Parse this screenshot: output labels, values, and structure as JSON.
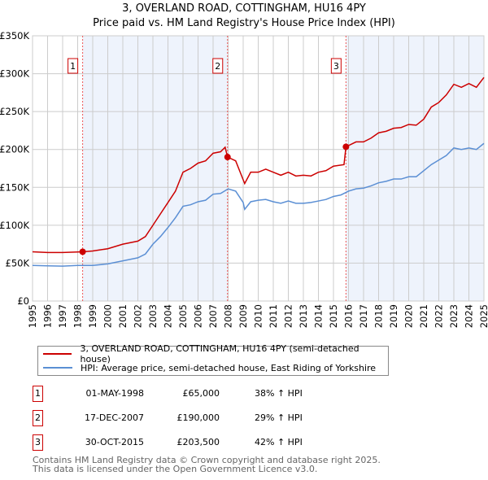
{
  "title": "3, OVERLAND ROAD, COTTINGHAM, HU16 4PY",
  "subtitle": "Price paid vs. HM Land Registry's House Price Index (HPI)",
  "colors": {
    "property": "#cc0000",
    "hpi": "#5b8fd4",
    "shade": "#eef3fc"
  },
  "chart_data": {
    "type": "line",
    "xlim": [
      1995,
      2025
    ],
    "ylim": [
      0,
      350000
    ],
    "yticks": [
      0,
      50000,
      100000,
      150000,
      200000,
      250000,
      300000,
      350000
    ],
    "ytick_labels": [
      "£0",
      "£50K",
      "£100K",
      "£150K",
      "£200K",
      "£250K",
      "£300K",
      "£350K"
    ],
    "xticks": [
      "1995",
      "1996",
      "1997",
      "1998",
      "1999",
      "2000",
      "2001",
      "2002",
      "2003",
      "2004",
      "2005",
      "2006",
      "2007",
      "2008",
      "2009",
      "2010",
      "2011",
      "2012",
      "2013",
      "2014",
      "2015",
      "2016",
      "2017",
      "2018",
      "2019",
      "2020",
      "2021",
      "2022",
      "2023",
      "2024",
      "2025"
    ],
    "grid": true,
    "series": [
      {
        "name": "3, OVERLAND ROAD, COTTINGHAM, HU16 4PY (semi-detached house)",
        "x": [
          1995,
          1996,
          1997,
          1998.33,
          1999,
          2000,
          2001,
          2002,
          2002.5,
          2003,
          2003.5,
          2004,
          2004.5,
          2005,
          2005.5,
          2006,
          2006.5,
          2007,
          2007.5,
          2007.8,
          2007.96,
          2008.5,
          2009,
          2009.1,
          2009.5,
          2010,
          2010.5,
          2011,
          2011.5,
          2012,
          2012.5,
          2013,
          2013.5,
          2014,
          2014.5,
          2015,
          2015.7,
          2015.83,
          2016.5,
          2017,
          2017.5,
          2018,
          2018.5,
          2019,
          2019.5,
          2020,
          2020.5,
          2021,
          2021.5,
          2022,
          2022.5,
          2023,
          2023.5,
          2024,
          2024.5,
          2025
        ],
        "y": [
          65000,
          64000,
          64000,
          65000,
          66000,
          69000,
          75000,
          79000,
          85000,
          100000,
          115000,
          130000,
          145000,
          170000,
          175000,
          182000,
          185000,
          195000,
          197000,
          203000,
          190000,
          185000,
          160000,
          155000,
          170000,
          170000,
          174000,
          170000,
          166000,
          170000,
          165000,
          166000,
          165000,
          170000,
          172000,
          178000,
          180000,
          203500,
          210000,
          210000,
          215000,
          222000,
          224000,
          228000,
          229000,
          233000,
          232000,
          240000,
          256000,
          262000,
          272000,
          286000,
          282000,
          287000,
          282000,
          295000
        ]
      },
      {
        "name": "HPI: Average price, semi-detached house, East Riding of Yorkshire",
        "x": [
          1995,
          1996,
          1997,
          1998,
          1999,
          2000,
          2001,
          2002,
          2002.5,
          2003,
          2003.5,
          2004,
          2004.5,
          2005,
          2005.5,
          2006,
          2006.5,
          2007,
          2007.5,
          2008,
          2008.5,
          2009,
          2009.1,
          2009.5,
          2010,
          2010.5,
          2011,
          2011.5,
          2012,
          2012.5,
          2013,
          2013.5,
          2014,
          2014.5,
          2015,
          2015.5,
          2016,
          2016.5,
          2017,
          2017.5,
          2018,
          2018.5,
          2019,
          2019.5,
          2020,
          2020.5,
          2021,
          2021.5,
          2022,
          2022.5,
          2023,
          2023.5,
          2024,
          2024.5,
          2025
        ],
        "y": [
          47000,
          46500,
          46000,
          47000,
          47000,
          49000,
          53000,
          57000,
          62000,
          75000,
          85000,
          97000,
          110000,
          125000,
          127000,
          131000,
          133000,
          141000,
          142000,
          148000,
          145000,
          130000,
          121000,
          131000,
          133000,
          134000,
          131000,
          129000,
          132000,
          129000,
          129000,
          130000,
          132000,
          134000,
          138000,
          140000,
          145000,
          148000,
          149000,
          152000,
          156000,
          158000,
          161000,
          161000,
          164000,
          164000,
          172000,
          180000,
          186000,
          192000,
          202000,
          200000,
          202000,
          200000,
          208000
        ]
      }
    ],
    "sales": [
      {
        "label": "1",
        "x": 1998.33,
        "y": 65000
      },
      {
        "label": "2",
        "x": 2007.96,
        "y": 190000
      },
      {
        "label": "3",
        "x": 2015.83,
        "y": 203500
      }
    ]
  },
  "legend": {
    "property": "3, OVERLAND ROAD, COTTINGHAM, HU16 4PY (semi-detached house)",
    "hpi": "HPI: Average price, semi-detached house, East Riding of Yorkshire"
  },
  "transactions": [
    {
      "num": "1",
      "date": "01-MAY-1998",
      "price": "£65,000",
      "hpi": "38% ↑ HPI"
    },
    {
      "num": "2",
      "date": "17-DEC-2007",
      "price": "£190,000",
      "hpi": "29% ↑ HPI"
    },
    {
      "num": "3",
      "date": "30-OCT-2015",
      "price": "£203,500",
      "hpi": "42% ↑ HPI"
    }
  ],
  "footer": [
    "Contains HM Land Registry data © Crown copyright and database right 2025.",
    "This data is licensed under the Open Government Licence v3.0."
  ]
}
